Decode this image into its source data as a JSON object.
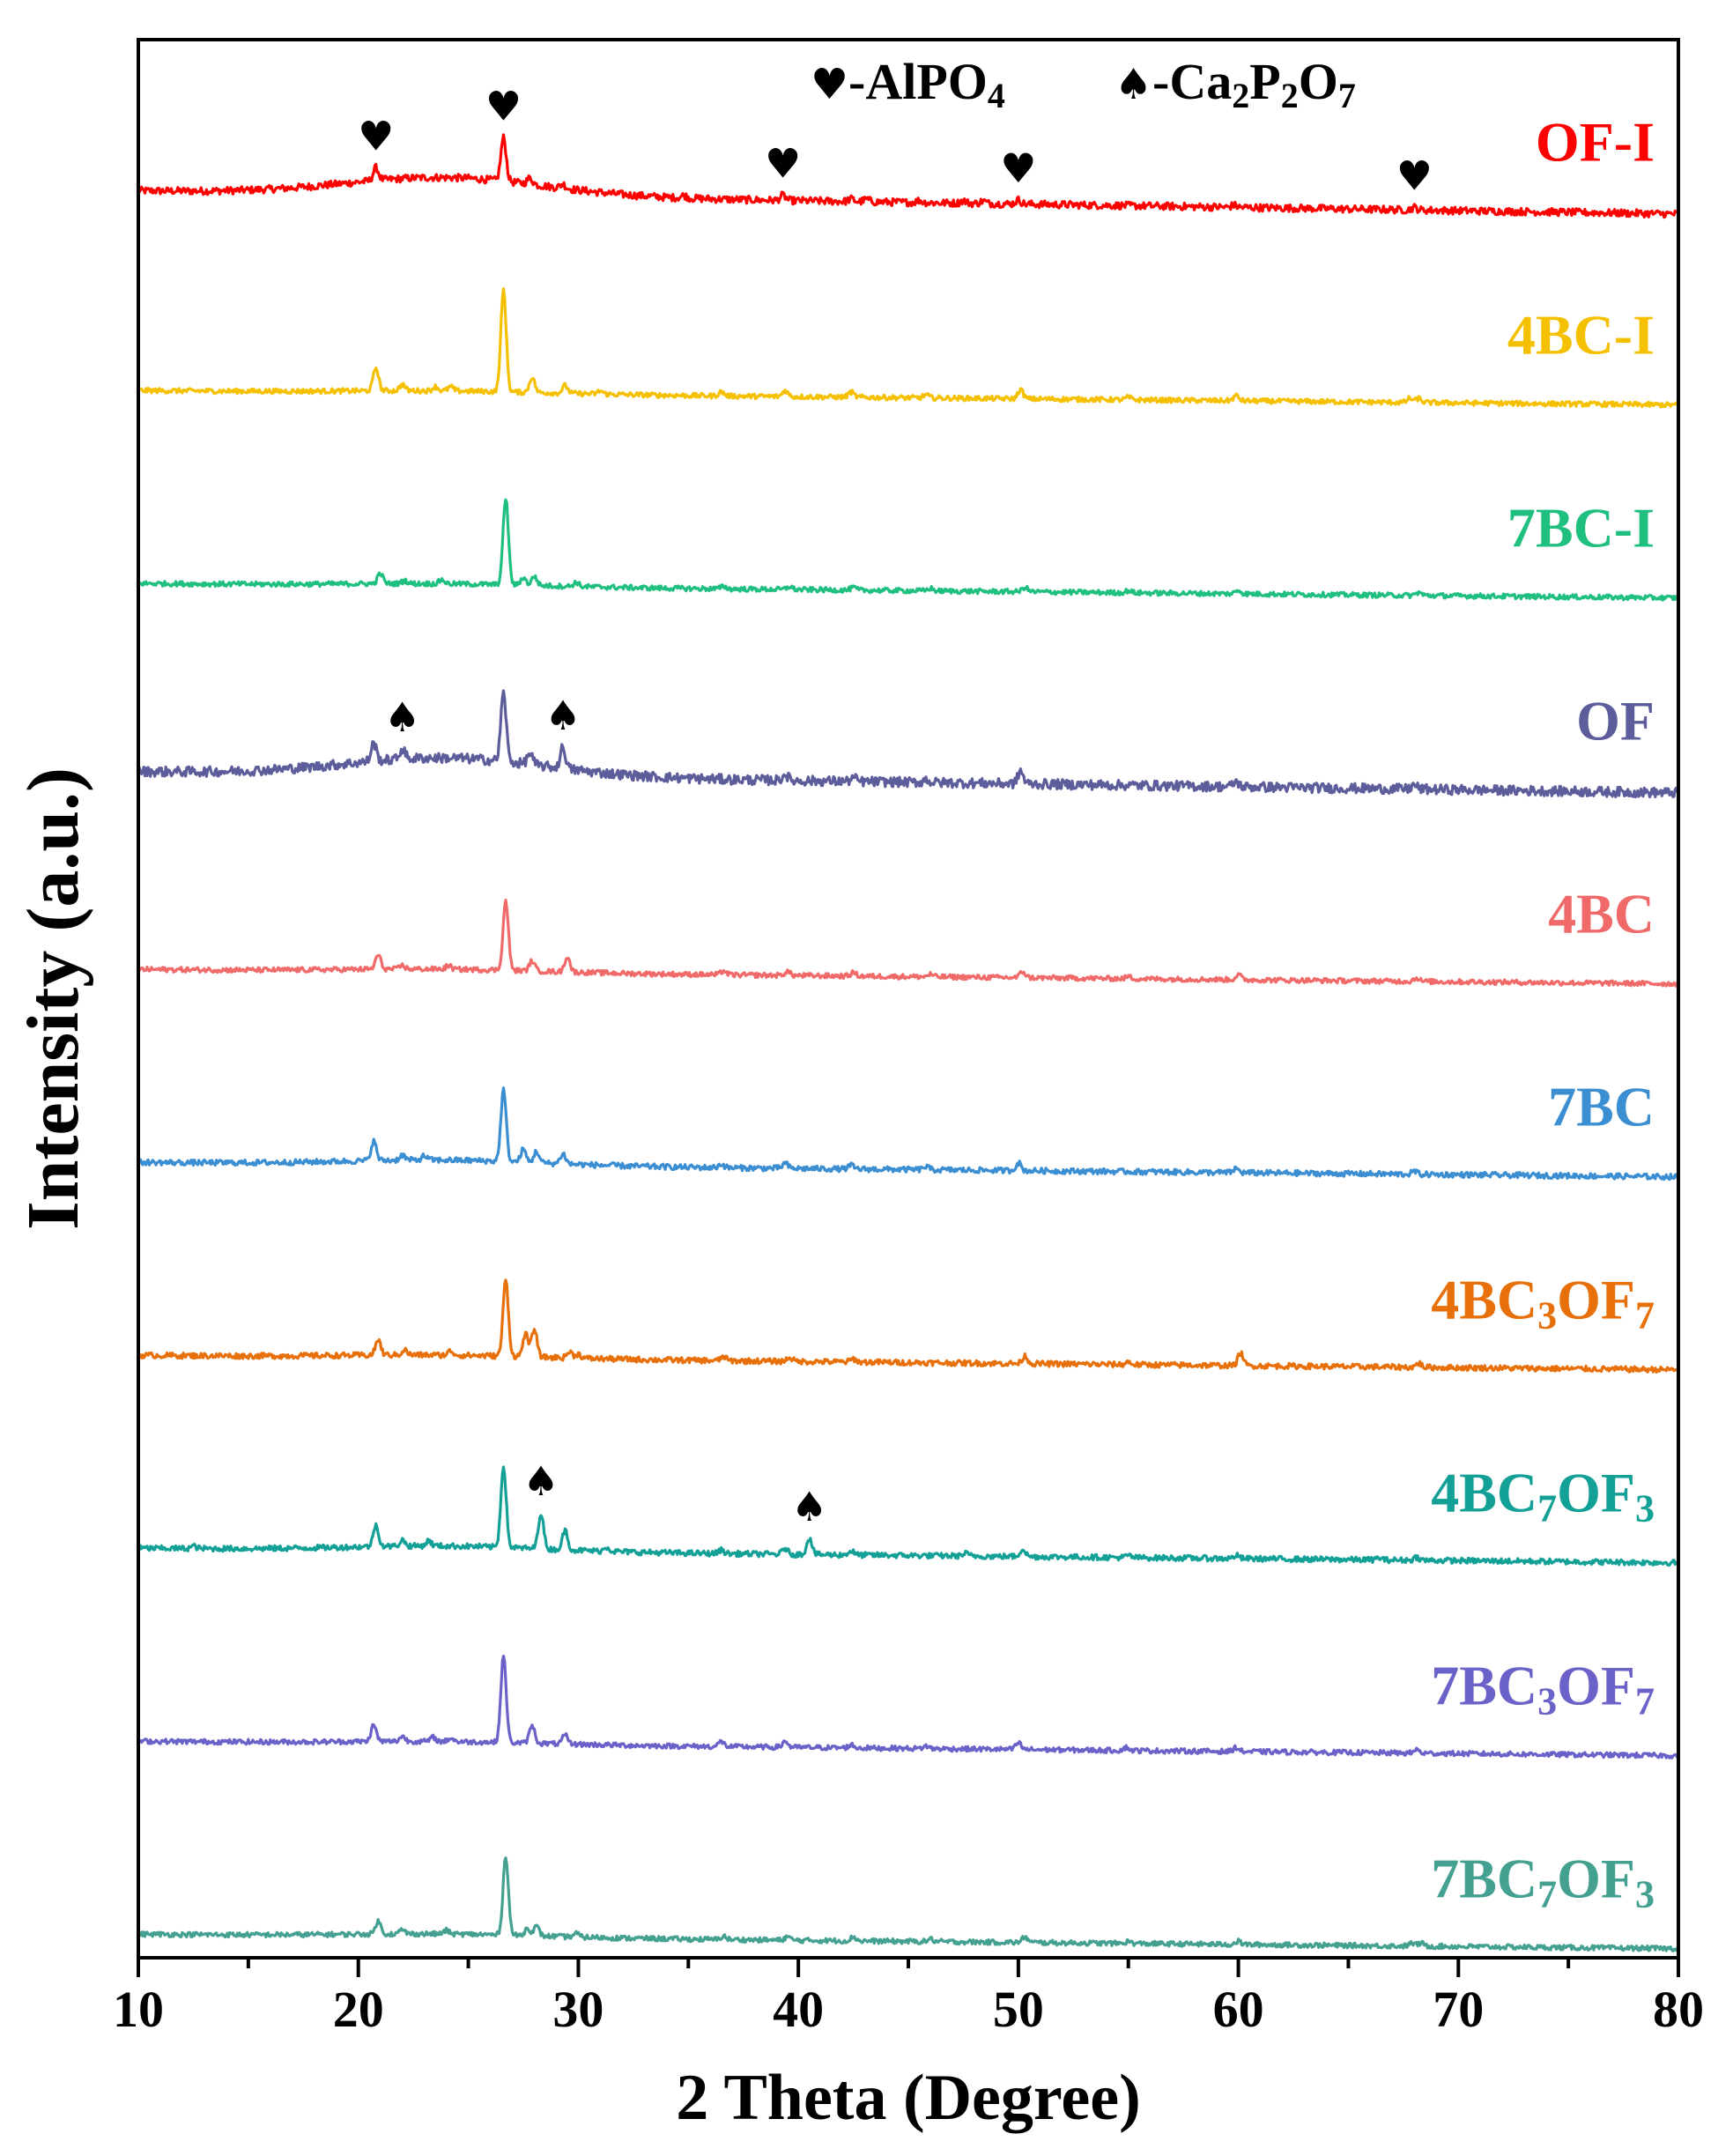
{
  "chart_data": {
    "type": "line",
    "title": "",
    "xlabel": "2 Theta (Degree)",
    "ylabel": "Intensity (a.u.)",
    "xlim": [
      10,
      80
    ],
    "xticks": [
      10,
      20,
      30,
      40,
      50,
      60,
      70,
      80
    ],
    "grid": false,
    "legend": {
      "position": "top-right",
      "items": [
        {
          "symbol": "♥",
          "text": "-AlPO",
          "sub": "4"
        },
        {
          "symbol": "♠",
          "text": "-Ca",
          "parts": [
            [
              "Ca",
              "2"
            ],
            [
              "P",
              "2"
            ],
            [
              "O",
              "7"
            ]
          ]
        }
      ]
    },
    "series": [
      {
        "name": "OF-I",
        "label_parts": [
          [
            "OF-I",
            ""
          ]
        ],
        "color": "#ff0000",
        "baseline": [
          0.965,
          0.895
        ],
        "noise": 0.012,
        "amorphous_hump": 0.35,
        "peaks": [
          [
            20.8,
            0.25
          ],
          [
            26.6,
            0.85
          ],
          [
            27.8,
            0.12
          ],
          [
            29.3,
            0.08
          ],
          [
            34.8,
            0.05
          ],
          [
            39.3,
            0.1
          ],
          [
            42.4,
            0.05
          ],
          [
            43.1,
            0.05
          ],
          [
            45.5,
            0.04
          ],
          [
            47.5,
            0.05
          ],
          [
            48.4,
            0.05
          ],
          [
            50.0,
            0.08
          ],
          [
            59.8,
            0.04
          ],
          [
            68.0,
            0.05
          ]
        ],
        "markers": [
          {
            "symbol": "♥",
            "x": 20.8
          },
          {
            "symbol": "♥",
            "x": 26.6
          },
          {
            "symbol": "♥",
            "x": 39.3
          },
          {
            "symbol": "♥",
            "x": 50.0
          },
          {
            "symbol": "♥",
            "x": 68.0
          }
        ]
      },
      {
        "name": "4BC-I",
        "label_parts": [
          [
            "4BC-I",
            ""
          ]
        ],
        "color": "#f5c000",
        "baseline": [
          0.955,
          0.93
        ],
        "noise": 0.008,
        "amorphous_hump": 0.05,
        "peaks": [
          [
            20.8,
            0.45
          ],
          [
            22.0,
            0.12
          ],
          [
            23.5,
            0.08
          ],
          [
            24.2,
            0.08
          ],
          [
            26.6,
            2.0
          ],
          [
            27.9,
            0.3
          ],
          [
            29.4,
            0.15
          ],
          [
            31.0,
            0.06
          ],
          [
            36.5,
            0.08
          ],
          [
            39.4,
            0.12
          ],
          [
            42.4,
            0.1
          ],
          [
            45.8,
            0.06
          ],
          [
            50.1,
            0.18
          ],
          [
            55.0,
            0.05
          ],
          [
            59.9,
            0.1
          ],
          [
            67.8,
            0.08
          ],
          [
            68.2,
            0.08
          ]
        ],
        "markers": []
      },
      {
        "name": "7BC-I",
        "label_parts": [
          [
            "7BC-I",
            ""
          ]
        ],
        "color": "#1fbf80",
        "baseline": [
          0.955,
          0.93
        ],
        "noise": 0.008,
        "amorphous_hump": 0.05,
        "peaks": [
          [
            21.0,
            0.2
          ],
          [
            22.1,
            0.06
          ],
          [
            23.8,
            0.08
          ],
          [
            26.7,
            1.7
          ],
          [
            27.5,
            0.15
          ],
          [
            28.0,
            0.18
          ],
          [
            29.9,
            0.08
          ],
          [
            36.6,
            0.05
          ],
          [
            39.6,
            0.06
          ],
          [
            42.5,
            0.05
          ],
          [
            46.0,
            0.05
          ],
          [
            50.3,
            0.09
          ],
          [
            55.0,
            0.04
          ],
          [
            60.0,
            0.07
          ],
          [
            68.2,
            0.06
          ]
        ],
        "markers": []
      },
      {
        "name": "OF",
        "label_parts": [
          [
            "OF",
            ""
          ]
        ],
        "color": "#5d5d9b",
        "baseline": [
          0.965,
          0.905
        ],
        "noise": 0.016,
        "amorphous_hump": 0.35,
        "peaks": [
          [
            20.7,
            0.35
          ],
          [
            22.0,
            0.2
          ],
          [
            26.6,
            1.35
          ],
          [
            27.8,
            0.22
          ],
          [
            29.3,
            0.42
          ],
          [
            39.4,
            0.12
          ],
          [
            42.5,
            0.07
          ],
          [
            45.8,
            0.06
          ],
          [
            50.1,
            0.25
          ],
          [
            59.9,
            0.1
          ],
          [
            68.0,
            0.08
          ]
        ],
        "markers": [
          {
            "symbol": "♠",
            "x": 22.0
          },
          {
            "symbol": "♠",
            "x": 29.3
          }
        ]
      },
      {
        "name": "4BC",
        "label_parts": [
          [
            "4BC",
            ""
          ]
        ],
        "color": "#f06a6a",
        "baseline": [
          0.955,
          0.93
        ],
        "noise": 0.008,
        "amorphous_hump": 0.06,
        "peaks": [
          [
            20.9,
            0.28
          ],
          [
            22.0,
            0.07
          ],
          [
            24.1,
            0.07
          ],
          [
            26.7,
            1.35
          ],
          [
            27.9,
            0.2
          ],
          [
            29.5,
            0.3
          ],
          [
            36.6,
            0.08
          ],
          [
            39.5,
            0.08
          ],
          [
            42.5,
            0.07
          ],
          [
            46.0,
            0.05
          ],
          [
            50.2,
            0.12
          ],
          [
            55.0,
            0.04
          ],
          [
            60.0,
            0.1
          ],
          [
            68.1,
            0.07
          ]
        ],
        "markers": []
      },
      {
        "name": "7BC",
        "label_parts": [
          [
            "7BC",
            ""
          ]
        ],
        "color": "#3a8ed1",
        "baseline": [
          0.955,
          0.93
        ],
        "noise": 0.009,
        "amorphous_hump": 0.1,
        "peaks": [
          [
            20.7,
            0.38
          ],
          [
            22.0,
            0.1
          ],
          [
            23.0,
            0.08
          ],
          [
            26.6,
            1.4
          ],
          [
            27.5,
            0.25
          ],
          [
            28.1,
            0.22
          ],
          [
            29.3,
            0.2
          ],
          [
            36.5,
            0.07
          ],
          [
            39.4,
            0.1
          ],
          [
            42.4,
            0.07
          ],
          [
            45.8,
            0.06
          ],
          [
            50.0,
            0.15
          ],
          [
            59.9,
            0.08
          ],
          [
            68.0,
            0.06
          ]
        ],
        "markers": []
      },
      {
        "name": "4BC3OF7",
        "label_parts": [
          [
            "4BC",
            ""
          ],
          [
            "3",
            "sub"
          ],
          [
            "OF",
            ""
          ],
          [
            "7",
            "sub"
          ]
        ],
        "color": "#e8700a",
        "baseline": [
          0.955,
          0.93
        ],
        "noise": 0.009,
        "amorphous_hump": 0.06,
        "peaks": [
          [
            20.9,
            0.3
          ],
          [
            22.1,
            0.1
          ],
          [
            24.2,
            0.08
          ],
          [
            26.7,
            1.5
          ],
          [
            27.6,
            0.45
          ],
          [
            28.0,
            0.55
          ],
          [
            29.6,
            0.12
          ],
          [
            30.0,
            0.08
          ],
          [
            36.6,
            0.08
          ],
          [
            39.6,
            0.08
          ],
          [
            42.5,
            0.06
          ],
          [
            50.3,
            0.15
          ],
          [
            55.0,
            0.05
          ],
          [
            60.1,
            0.25
          ],
          [
            68.2,
            0.08
          ]
        ],
        "markers": []
      },
      {
        "name": "4BC7OF3",
        "label_parts": [
          [
            "4BC",
            ""
          ],
          [
            "7",
            "sub"
          ],
          [
            "OF",
            ""
          ],
          [
            "3",
            "sub"
          ]
        ],
        "color": "#13a097",
        "baseline": [
          0.955,
          0.93
        ],
        "noise": 0.009,
        "amorphous_hump": 0.1,
        "peaks": [
          [
            12.5,
            0.05
          ],
          [
            20.8,
            0.42
          ],
          [
            22.0,
            0.12
          ],
          [
            23.2,
            0.1
          ],
          [
            26.6,
            1.6
          ],
          [
            28.3,
            0.7
          ],
          [
            29.4,
            0.38
          ],
          [
            31.3,
            0.08
          ],
          [
            36.5,
            0.07
          ],
          [
            39.4,
            0.12
          ],
          [
            40.5,
            0.32
          ],
          [
            42.4,
            0.08
          ],
          [
            47.6,
            0.05
          ],
          [
            50.2,
            0.15
          ],
          [
            55.0,
            0.04
          ],
          [
            59.9,
            0.06
          ],
          [
            66.4,
            0.04
          ],
          [
            68.1,
            0.06
          ]
        ],
        "markers": [
          {
            "symbol": "♠",
            "x": 28.3
          },
          {
            "symbol": "♠",
            "x": 40.5
          }
        ]
      },
      {
        "name": "7BC3OF7",
        "label_parts": [
          [
            "7BC",
            ""
          ],
          [
            "3",
            "sub"
          ],
          [
            "OF",
            ""
          ],
          [
            "7",
            "sub"
          ]
        ],
        "color": "#6a62c8",
        "baseline": [
          0.955,
          0.93
        ],
        "noise": 0.008,
        "amorphous_hump": 0.05,
        "peaks": [
          [
            20.7,
            0.32
          ],
          [
            22.0,
            0.1
          ],
          [
            23.4,
            0.08
          ],
          [
            24.2,
            0.07
          ],
          [
            26.6,
            1.7
          ],
          [
            27.9,
            0.35
          ],
          [
            29.4,
            0.17
          ],
          [
            36.5,
            0.1
          ],
          [
            39.4,
            0.12
          ],
          [
            42.4,
            0.06
          ],
          [
            45.8,
            0.05
          ],
          [
            50.0,
            0.13
          ],
          [
            54.9,
            0.06
          ],
          [
            59.9,
            0.08
          ],
          [
            68.1,
            0.07
          ]
        ],
        "markers": []
      },
      {
        "name": "7BC7OF3",
        "label_parts": [
          [
            "7BC",
            ""
          ],
          [
            "7",
            "sub"
          ],
          [
            "OF",
            ""
          ],
          [
            "3",
            "sub"
          ]
        ],
        "color": "#44a090",
        "baseline": [
          0.955,
          0.93
        ],
        "noise": 0.008,
        "amorphous_hump": 0.06,
        "peaks": [
          [
            20.9,
            0.25
          ],
          [
            22.0,
            0.08
          ],
          [
            24.0,
            0.07
          ],
          [
            26.7,
            1.55
          ],
          [
            27.7,
            0.15
          ],
          [
            28.1,
            0.18
          ],
          [
            29.9,
            0.07
          ],
          [
            36.6,
            0.07
          ],
          [
            39.5,
            0.07
          ],
          [
            42.5,
            0.08
          ],
          [
            46.0,
            0.05
          ],
          [
            50.3,
            0.11
          ],
          [
            55.0,
            0.04
          ],
          [
            60.0,
            0.06
          ],
          [
            67.9,
            0.06
          ],
          [
            68.3,
            0.06
          ]
        ],
        "markers": []
      }
    ]
  }
}
